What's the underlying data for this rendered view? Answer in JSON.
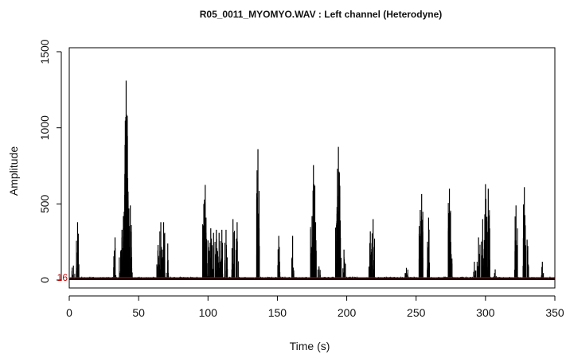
{
  "chart_data": {
    "type": "line",
    "title": "R05_0011_MYOMYO.WAV : Left channel (Heterodyne)",
    "xlabel": "Time (s)",
    "ylabel": "Amplitude",
    "xlim": [
      0,
      350
    ],
    "ylim": [
      0,
      1500
    ],
    "x_ticks": [
      0,
      50,
      100,
      150,
      200,
      250,
      300,
      350
    ],
    "y_ticks": [
      0,
      500,
      1000,
      1500
    ],
    "grid": false,
    "baseline": 12,
    "line_color": "#000000",
    "threshold": {
      "value": 16,
      "label": "16",
      "color": "#cc0000"
    },
    "peaks": [
      [
        3,
        95
      ],
      [
        6,
        380
      ],
      [
        33,
        280
      ],
      [
        37,
        190
      ],
      [
        38,
        330
      ],
      [
        39,
        420
      ],
      [
        40,
        560
      ],
      [
        41,
        1310
      ],
      [
        41.5,
        870
      ],
      [
        42,
        520
      ],
      [
        43,
        470
      ],
      [
        44,
        490
      ],
      [
        45,
        150
      ],
      [
        64,
        230
      ],
      [
        66,
        380
      ],
      [
        68,
        380
      ],
      [
        71,
        240
      ],
      [
        97,
        500
      ],
      [
        98,
        625
      ],
      [
        100,
        260
      ],
      [
        102,
        340
      ],
      [
        104,
        310
      ],
      [
        106,
        330
      ],
      [
        108,
        310
      ],
      [
        110,
        330
      ],
      [
        113,
        330
      ],
      [
        118,
        400
      ],
      [
        121,
        380
      ],
      [
        136,
        860
      ],
      [
        151,
        290
      ],
      [
        161,
        290
      ],
      [
        175,
        420
      ],
      [
        176,
        755
      ],
      [
        177,
        620
      ],
      [
        180,
        90
      ],
      [
        193,
        480
      ],
      [
        194,
        875
      ],
      [
        195,
        620
      ],
      [
        198,
        200
      ],
      [
        217,
        320
      ],
      [
        219,
        400
      ],
      [
        243,
        80
      ],
      [
        253,
        460
      ],
      [
        254,
        565
      ],
      [
        259,
        410
      ],
      [
        274,
        600
      ],
      [
        275,
        250
      ],
      [
        292,
        120
      ],
      [
        295,
        280
      ],
      [
        298,
        400
      ],
      [
        300,
        630
      ],
      [
        302,
        600
      ],
      [
        307,
        70
      ],
      [
        322,
        490
      ],
      [
        328,
        610
      ],
      [
        330,
        265
      ],
      [
        341,
        120
      ]
    ]
  }
}
